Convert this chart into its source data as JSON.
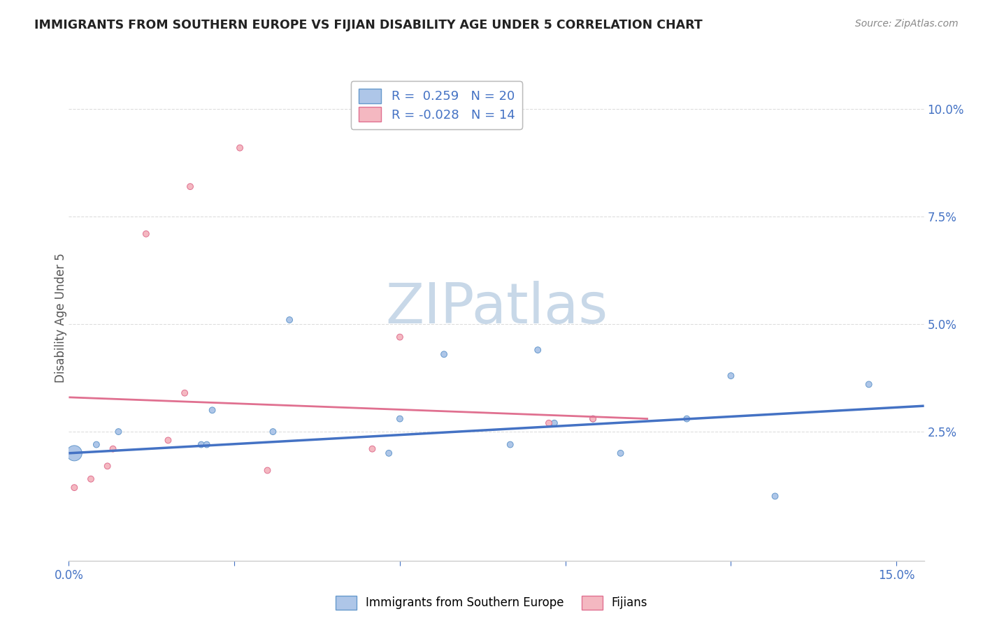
{
  "title": "IMMIGRANTS FROM SOUTHERN EUROPE VS FIJIAN DISABILITY AGE UNDER 5 CORRELATION CHART",
  "source": "Source: ZipAtlas.com",
  "ylabel": "Disability Age Under 5",
  "right_yticks": [
    "10.0%",
    "7.5%",
    "5.0%",
    "2.5%"
  ],
  "right_ytick_vals": [
    0.1,
    0.075,
    0.05,
    0.025
  ],
  "xlim": [
    0.0,
    0.155
  ],
  "ylim": [
    -0.005,
    0.108
  ],
  "blue_scatter": {
    "x": [
      0.001,
      0.005,
      0.009,
      0.024,
      0.025,
      0.026,
      0.037,
      0.04,
      0.058,
      0.06,
      0.068,
      0.08,
      0.085,
      0.088,
      0.095,
      0.1,
      0.112,
      0.12,
      0.128,
      0.145
    ],
    "y": [
      0.02,
      0.022,
      0.025,
      0.022,
      0.022,
      0.03,
      0.025,
      0.051,
      0.02,
      0.028,
      0.043,
      0.022,
      0.044,
      0.027,
      0.028,
      0.02,
      0.028,
      0.038,
      0.01,
      0.036
    ],
    "sizes": [
      250,
      40,
      40,
      40,
      40,
      40,
      40,
      40,
      40,
      40,
      40,
      40,
      40,
      40,
      40,
      40,
      40,
      40,
      40,
      40
    ],
    "color": "#aec6e8",
    "edgecolor": "#6699cc"
  },
  "pink_scatter": {
    "x": [
      0.001,
      0.004,
      0.007,
      0.008,
      0.014,
      0.018,
      0.021,
      0.022,
      0.031,
      0.036,
      0.055,
      0.06,
      0.087,
      0.095
    ],
    "y": [
      0.012,
      0.014,
      0.017,
      0.021,
      0.071,
      0.023,
      0.034,
      0.082,
      0.091,
      0.016,
      0.021,
      0.047,
      0.027,
      0.028
    ],
    "sizes": [
      40,
      40,
      40,
      40,
      40,
      40,
      40,
      40,
      40,
      40,
      40,
      40,
      40,
      40
    ],
    "color": "#f4b8c1",
    "edgecolor": "#e07090"
  },
  "blue_line_x": [
    0.0,
    0.155
  ],
  "blue_line_y": [
    0.02,
    0.031
  ],
  "pink_line_x": [
    0.0,
    0.105
  ],
  "pink_line_y": [
    0.033,
    0.028
  ],
  "blue_line_color": "#4472c4",
  "pink_line_color": "#e07090",
  "watermark_text": "ZIPatlas",
  "watermark_color": "#c8d8e8",
  "bg_color": "#ffffff",
  "grid_color": "#dddddd",
  "legend_top": [
    {
      "label": "R =  0.259   N = 20",
      "fc": "#aec6e8",
      "ec": "#6699cc"
    },
    {
      "label": "R = -0.028   N = 14",
      "fc": "#f4b8c1",
      "ec": "#e07090"
    }
  ],
  "legend_bottom": [
    {
      "label": "Immigrants from Southern Europe",
      "fc": "#aec6e8",
      "ec": "#6699cc"
    },
    {
      "label": "Fijians",
      "fc": "#f4b8c1",
      "ec": "#e07090"
    }
  ]
}
